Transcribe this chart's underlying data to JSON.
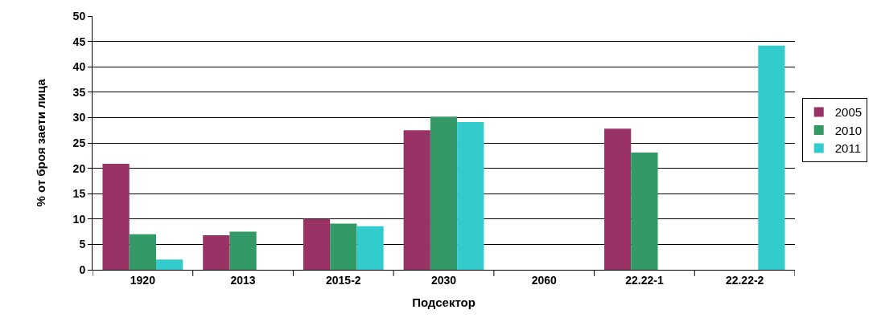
{
  "chart_data": {
    "type": "bar",
    "xlabel": "Подсектор",
    "ylabel": "% от броя заети лица",
    "categories": [
      "1920",
      "2013",
      "2015-2",
      "2030",
      "2060",
      "22.22-1",
      "22.22-2"
    ],
    "series": [
      {
        "name": "2005",
        "color": "#993366",
        "values": [
          20.9,
          6.8,
          10.0,
          27.5,
          null,
          27.8,
          null
        ]
      },
      {
        "name": "2010",
        "color": "#339966",
        "values": [
          7.0,
          7.5,
          9.1,
          30.2,
          null,
          23.1,
          null
        ]
      },
      {
        "name": "2011",
        "color": "#33cccc",
        "values": [
          2.0,
          null,
          8.6,
          29.1,
          null,
          null,
          44.2
        ]
      }
    ],
    "ylim": [
      0,
      50
    ],
    "yticks": [
      0,
      5,
      10,
      15,
      20,
      25,
      30,
      35,
      40,
      45,
      50
    ],
    "grid": "y",
    "legend": "right"
  }
}
